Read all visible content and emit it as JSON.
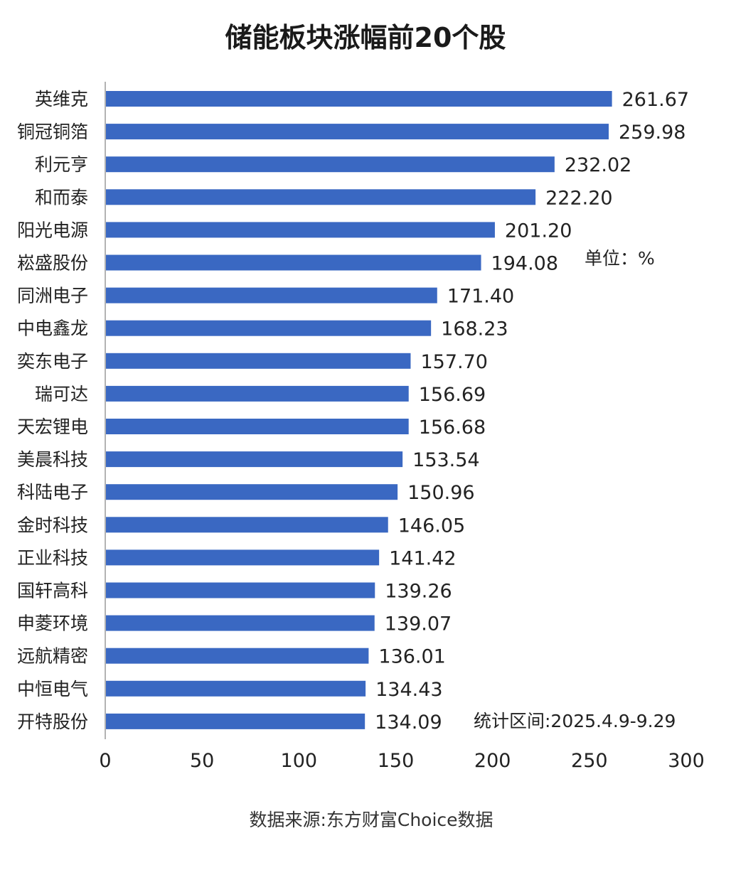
{
  "chart_data": {
    "type": "bar",
    "orientation": "horizontal",
    "title": "储能板块涨幅前20个股",
    "unit_note": "单位：%",
    "period_note": "统计区间:2025.4.9-9.29",
    "source": "数据来源:东方财富Choice数据",
    "categories": [
      "英维克",
      "铜冠铜箔",
      "利元亨",
      "和而泰",
      "阳光电源",
      "崧盛股份",
      "同洲电子",
      "中电鑫龙",
      "奕东电子",
      "瑞可达",
      "天宏锂电",
      "美晨科技",
      "科陆电子",
      "金时科技",
      "正业科技",
      "国轩高科",
      "申菱环境",
      "远航精密",
      "中恒电气",
      "开特股份"
    ],
    "values": [
      261.67,
      259.98,
      232.02,
      222.2,
      201.2,
      194.08,
      171.4,
      168.23,
      157.7,
      156.69,
      156.68,
      153.54,
      150.96,
      146.05,
      141.42,
      139.26,
      139.07,
      136.01,
      134.43,
      134.09
    ],
    "value_labels": [
      "261.67",
      "259.98",
      "232.02",
      "222.20",
      "201.20",
      "194.08",
      "171.40",
      "168.23",
      "157.70",
      "156.69",
      "156.68",
      "153.54",
      "150.96",
      "146.05",
      "141.42",
      "139.26",
      "139.07",
      "136.01",
      "134.43",
      "134.09"
    ],
    "xlim": [
      0,
      300
    ],
    "xticks": [
      0,
      50,
      100,
      150,
      200,
      250,
      300
    ],
    "grid": false,
    "bar_color": "#3a68c2"
  }
}
